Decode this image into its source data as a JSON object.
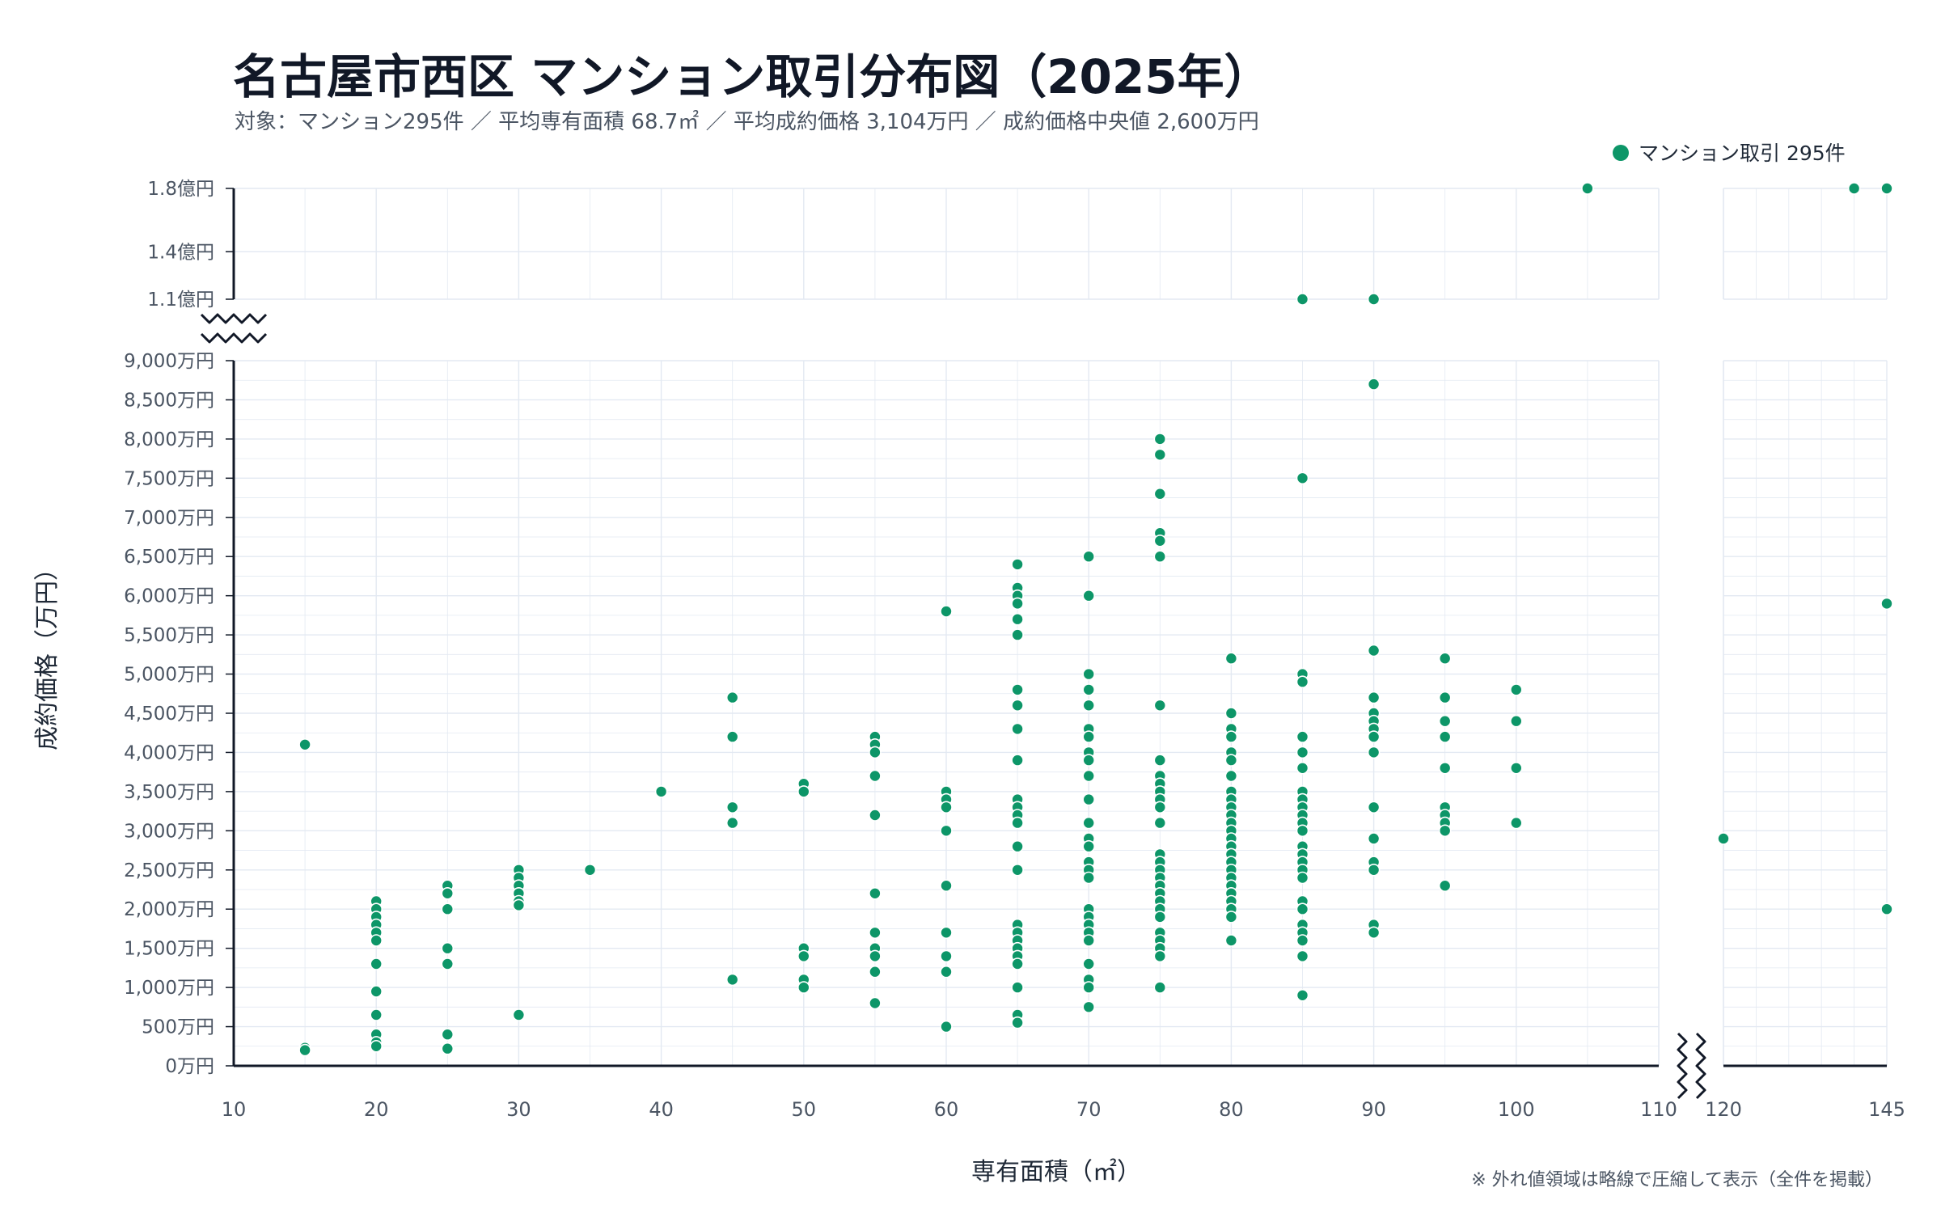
{
  "chart_data": {
    "type": "scatter",
    "title": "名古屋市西区 マンション取引分布図（2025年）",
    "subtitle": "対象：マンション295件 ／ 平均専有面積 68.7㎡ ／ 平均成約価格 3,104万円 ／ 成約価格中央値 2,600万円",
    "xlabel": "専有面積（㎡）",
    "ylabel": "成約価格（万円）",
    "footnote": "※ 外れ値領域は略線で圧縮して表示（全件を掲載）",
    "legend": {
      "position": "top-right",
      "label": "マンション取引 295件"
    },
    "grid": true,
    "colors": {
      "point": "#0d9668",
      "grid": "#e3e9f2",
      "axis": "#111827",
      "text": "#4b5563"
    },
    "x_axis": {
      "broken": true,
      "segments": [
        [
          10,
          110
        ],
        [
          120,
          145
        ]
      ],
      "ticks": [
        10,
        20,
        30,
        40,
        50,
        60,
        70,
        80,
        90,
        100,
        110,
        120,
        145
      ],
      "tick_labels": [
        "10",
        "20",
        "30",
        "40",
        "50",
        "60",
        "70",
        "80",
        "90",
        "100",
        "110",
        "120",
        "145"
      ]
    },
    "y_axis": {
      "broken": true,
      "segments": [
        [
          0,
          9000
        ],
        [
          11000,
          18000
        ]
      ],
      "ticks": [
        0,
        500,
        1000,
        1500,
        2000,
        2500,
        3000,
        3500,
        4000,
        4500,
        5000,
        5500,
        6000,
        6500,
        7000,
        7500,
        8000,
        8500,
        9000
      ],
      "tick_labels": [
        "0万円",
        "500万円",
        "1,000万円",
        "1,500万円",
        "2,000万円",
        "2,500万円",
        "3,000万円",
        "3,500万円",
        "4,000万円",
        "4,500万円",
        "5,000万円",
        "5,500万円",
        "6,000万円",
        "6,500万円",
        "7,000万円",
        "7,500万円",
        "8,000万円",
        "8,500万円",
        "9,000万円"
      ],
      "upper_ticks": [
        11000,
        14000,
        18000
      ],
      "upper_tick_labels": [
        "1.1億円",
        "1.4億円",
        "1.8億円"
      ]
    },
    "series": [
      {
        "name": "マンション取引 295件",
        "points": [
          [
            15,
            4100
          ],
          [
            15,
            230
          ],
          [
            15,
            200
          ],
          [
            20,
            2100
          ],
          [
            20,
            2000
          ],
          [
            20,
            1900
          ],
          [
            20,
            1800
          ],
          [
            20,
            1700
          ],
          [
            20,
            1600
          ],
          [
            20,
            1300
          ],
          [
            20,
            950
          ],
          [
            20,
            650
          ],
          [
            20,
            400
          ],
          [
            20,
            300
          ],
          [
            20,
            250
          ],
          [
            25,
            2300
          ],
          [
            25,
            2200
          ],
          [
            25,
            2000
          ],
          [
            25,
            1500
          ],
          [
            25,
            1300
          ],
          [
            25,
            400
          ],
          [
            25,
            220
          ],
          [
            30,
            2500
          ],
          [
            30,
            2400
          ],
          [
            30,
            2300
          ],
          [
            30,
            2200
          ],
          [
            30,
            2100
          ],
          [
            30,
            2050
          ],
          [
            30,
            650
          ],
          [
            35,
            2500
          ],
          [
            40,
            3500
          ],
          [
            45,
            4700
          ],
          [
            45,
            4200
          ],
          [
            45,
            3300
          ],
          [
            45,
            3100
          ],
          [
            45,
            1100
          ],
          [
            50,
            3600
          ],
          [
            50,
            3500
          ],
          [
            50,
            1500
          ],
          [
            50,
            1400
          ],
          [
            50,
            1100
          ],
          [
            50,
            1000
          ],
          [
            55,
            4200
          ],
          [
            55,
            4100
          ],
          [
            55,
            4000
          ],
          [
            55,
            3700
          ],
          [
            55,
            3200
          ],
          [
            55,
            2200
          ],
          [
            55,
            1700
          ],
          [
            55,
            1500
          ],
          [
            55,
            1400
          ],
          [
            55,
            1200
          ],
          [
            55,
            800
          ],
          [
            60,
            5800
          ],
          [
            60,
            3500
          ],
          [
            60,
            3400
          ],
          [
            60,
            3300
          ],
          [
            60,
            3000
          ],
          [
            60,
            2300
          ],
          [
            60,
            1700
          ],
          [
            60,
            1400
          ],
          [
            60,
            1200
          ],
          [
            60,
            500
          ],
          [
            65,
            6400
          ],
          [
            65,
            6100
          ],
          [
            65,
            6000
          ],
          [
            65,
            5900
          ],
          [
            65,
            5700
          ],
          [
            65,
            5500
          ],
          [
            65,
            4800
          ],
          [
            65,
            4600
          ],
          [
            65,
            4300
          ],
          [
            65,
            3900
          ],
          [
            65,
            3400
          ],
          [
            65,
            3300
          ],
          [
            65,
            3200
          ],
          [
            65,
            3100
          ],
          [
            65,
            2800
          ],
          [
            65,
            2500
          ],
          [
            65,
            1800
          ],
          [
            65,
            1700
          ],
          [
            65,
            1600
          ],
          [
            65,
            1500
          ],
          [
            65,
            1400
          ],
          [
            65,
            1300
          ],
          [
            65,
            1000
          ],
          [
            65,
            650
          ],
          [
            65,
            550
          ],
          [
            70,
            6500
          ],
          [
            70,
            6000
          ],
          [
            70,
            5000
          ],
          [
            70,
            4800
          ],
          [
            70,
            4600
          ],
          [
            70,
            4300
          ],
          [
            70,
            4200
          ],
          [
            70,
            4000
          ],
          [
            70,
            3900
          ],
          [
            70,
            3700
          ],
          [
            70,
            3400
          ],
          [
            70,
            3100
          ],
          [
            70,
            2900
          ],
          [
            70,
            2800
          ],
          [
            70,
            2600
          ],
          [
            70,
            2500
          ],
          [
            70,
            2400
          ],
          [
            70,
            2000
          ],
          [
            70,
            1900
          ],
          [
            70,
            1800
          ],
          [
            70,
            1700
          ],
          [
            70,
            1600
          ],
          [
            70,
            1300
          ],
          [
            70,
            1100
          ],
          [
            70,
            1000
          ],
          [
            70,
            750
          ],
          [
            75,
            8000
          ],
          [
            75,
            7800
          ],
          [
            75,
            7300
          ],
          [
            75,
            6800
          ],
          [
            75,
            6700
          ],
          [
            75,
            6500
          ],
          [
            75,
            4600
          ],
          [
            75,
            3900
          ],
          [
            75,
            3700
          ],
          [
            75,
            3600
          ],
          [
            75,
            3500
          ],
          [
            75,
            3400
          ],
          [
            75,
            3300
          ],
          [
            75,
            3100
          ],
          [
            75,
            2700
          ],
          [
            75,
            2600
          ],
          [
            75,
            2500
          ],
          [
            75,
            2400
          ],
          [
            75,
            2300
          ],
          [
            75,
            2200
          ],
          [
            75,
            2100
          ],
          [
            75,
            2000
          ],
          [
            75,
            1900
          ],
          [
            75,
            1700
          ],
          [
            75,
            1600
          ],
          [
            75,
            1500
          ],
          [
            75,
            1400
          ],
          [
            75,
            1000
          ],
          [
            80,
            5200
          ],
          [
            80,
            4500
          ],
          [
            80,
            4300
          ],
          [
            80,
            4200
          ],
          [
            80,
            4000
          ],
          [
            80,
            3900
          ],
          [
            80,
            3700
          ],
          [
            80,
            3500
          ],
          [
            80,
            3400
          ],
          [
            80,
            3300
          ],
          [
            80,
            3200
          ],
          [
            80,
            3100
          ],
          [
            80,
            3000
          ],
          [
            80,
            2900
          ],
          [
            80,
            2800
          ],
          [
            80,
            2700
          ],
          [
            80,
            2600
          ],
          [
            80,
            2500
          ],
          [
            80,
            2400
          ],
          [
            80,
            2300
          ],
          [
            80,
            2200
          ],
          [
            80,
            2100
          ],
          [
            80,
            2000
          ],
          [
            80,
            1900
          ],
          [
            80,
            1600
          ],
          [
            85,
            11000
          ],
          [
            85,
            7500
          ],
          [
            85,
            5000
          ],
          [
            85,
            4900
          ],
          [
            85,
            4200
          ],
          [
            85,
            4000
          ],
          [
            85,
            3800
          ],
          [
            85,
            3500
          ],
          [
            85,
            3400
          ],
          [
            85,
            3300
          ],
          [
            85,
            3200
          ],
          [
            85,
            3100
          ],
          [
            85,
            3000
          ],
          [
            85,
            2800
          ],
          [
            85,
            2700
          ],
          [
            85,
            2600
          ],
          [
            85,
            2500
          ],
          [
            85,
            2400
          ],
          [
            85,
            2100
          ],
          [
            85,
            2000
          ],
          [
            85,
            1800
          ],
          [
            85,
            1700
          ],
          [
            85,
            1600
          ],
          [
            85,
            1400
          ],
          [
            85,
            900
          ],
          [
            90,
            11000
          ],
          [
            90,
            8700
          ],
          [
            90,
            5300
          ],
          [
            90,
            4700
          ],
          [
            90,
            4500
          ],
          [
            90,
            4400
          ],
          [
            90,
            4300
          ],
          [
            90,
            4200
          ],
          [
            90,
            4000
          ],
          [
            90,
            3300
          ],
          [
            90,
            2900
          ],
          [
            90,
            2600
          ],
          [
            90,
            2500
          ],
          [
            90,
            1800
          ],
          [
            90,
            1700
          ],
          [
            95,
            5200
          ],
          [
            95,
            4700
          ],
          [
            95,
            4400
          ],
          [
            95,
            4200
          ],
          [
            95,
            3800
          ],
          [
            95,
            3300
          ],
          [
            95,
            3200
          ],
          [
            95,
            3100
          ],
          [
            95,
            3000
          ],
          [
            95,
            2300
          ],
          [
            100,
            4800
          ],
          [
            100,
            4400
          ],
          [
            100,
            3800
          ],
          [
            100,
            3100
          ],
          [
            105,
            18000
          ],
          [
            120,
            2900
          ],
          [
            140,
            18000
          ],
          [
            145,
            18000
          ],
          [
            145,
            5900
          ],
          [
            145,
            2000
          ]
        ]
      }
    ]
  }
}
